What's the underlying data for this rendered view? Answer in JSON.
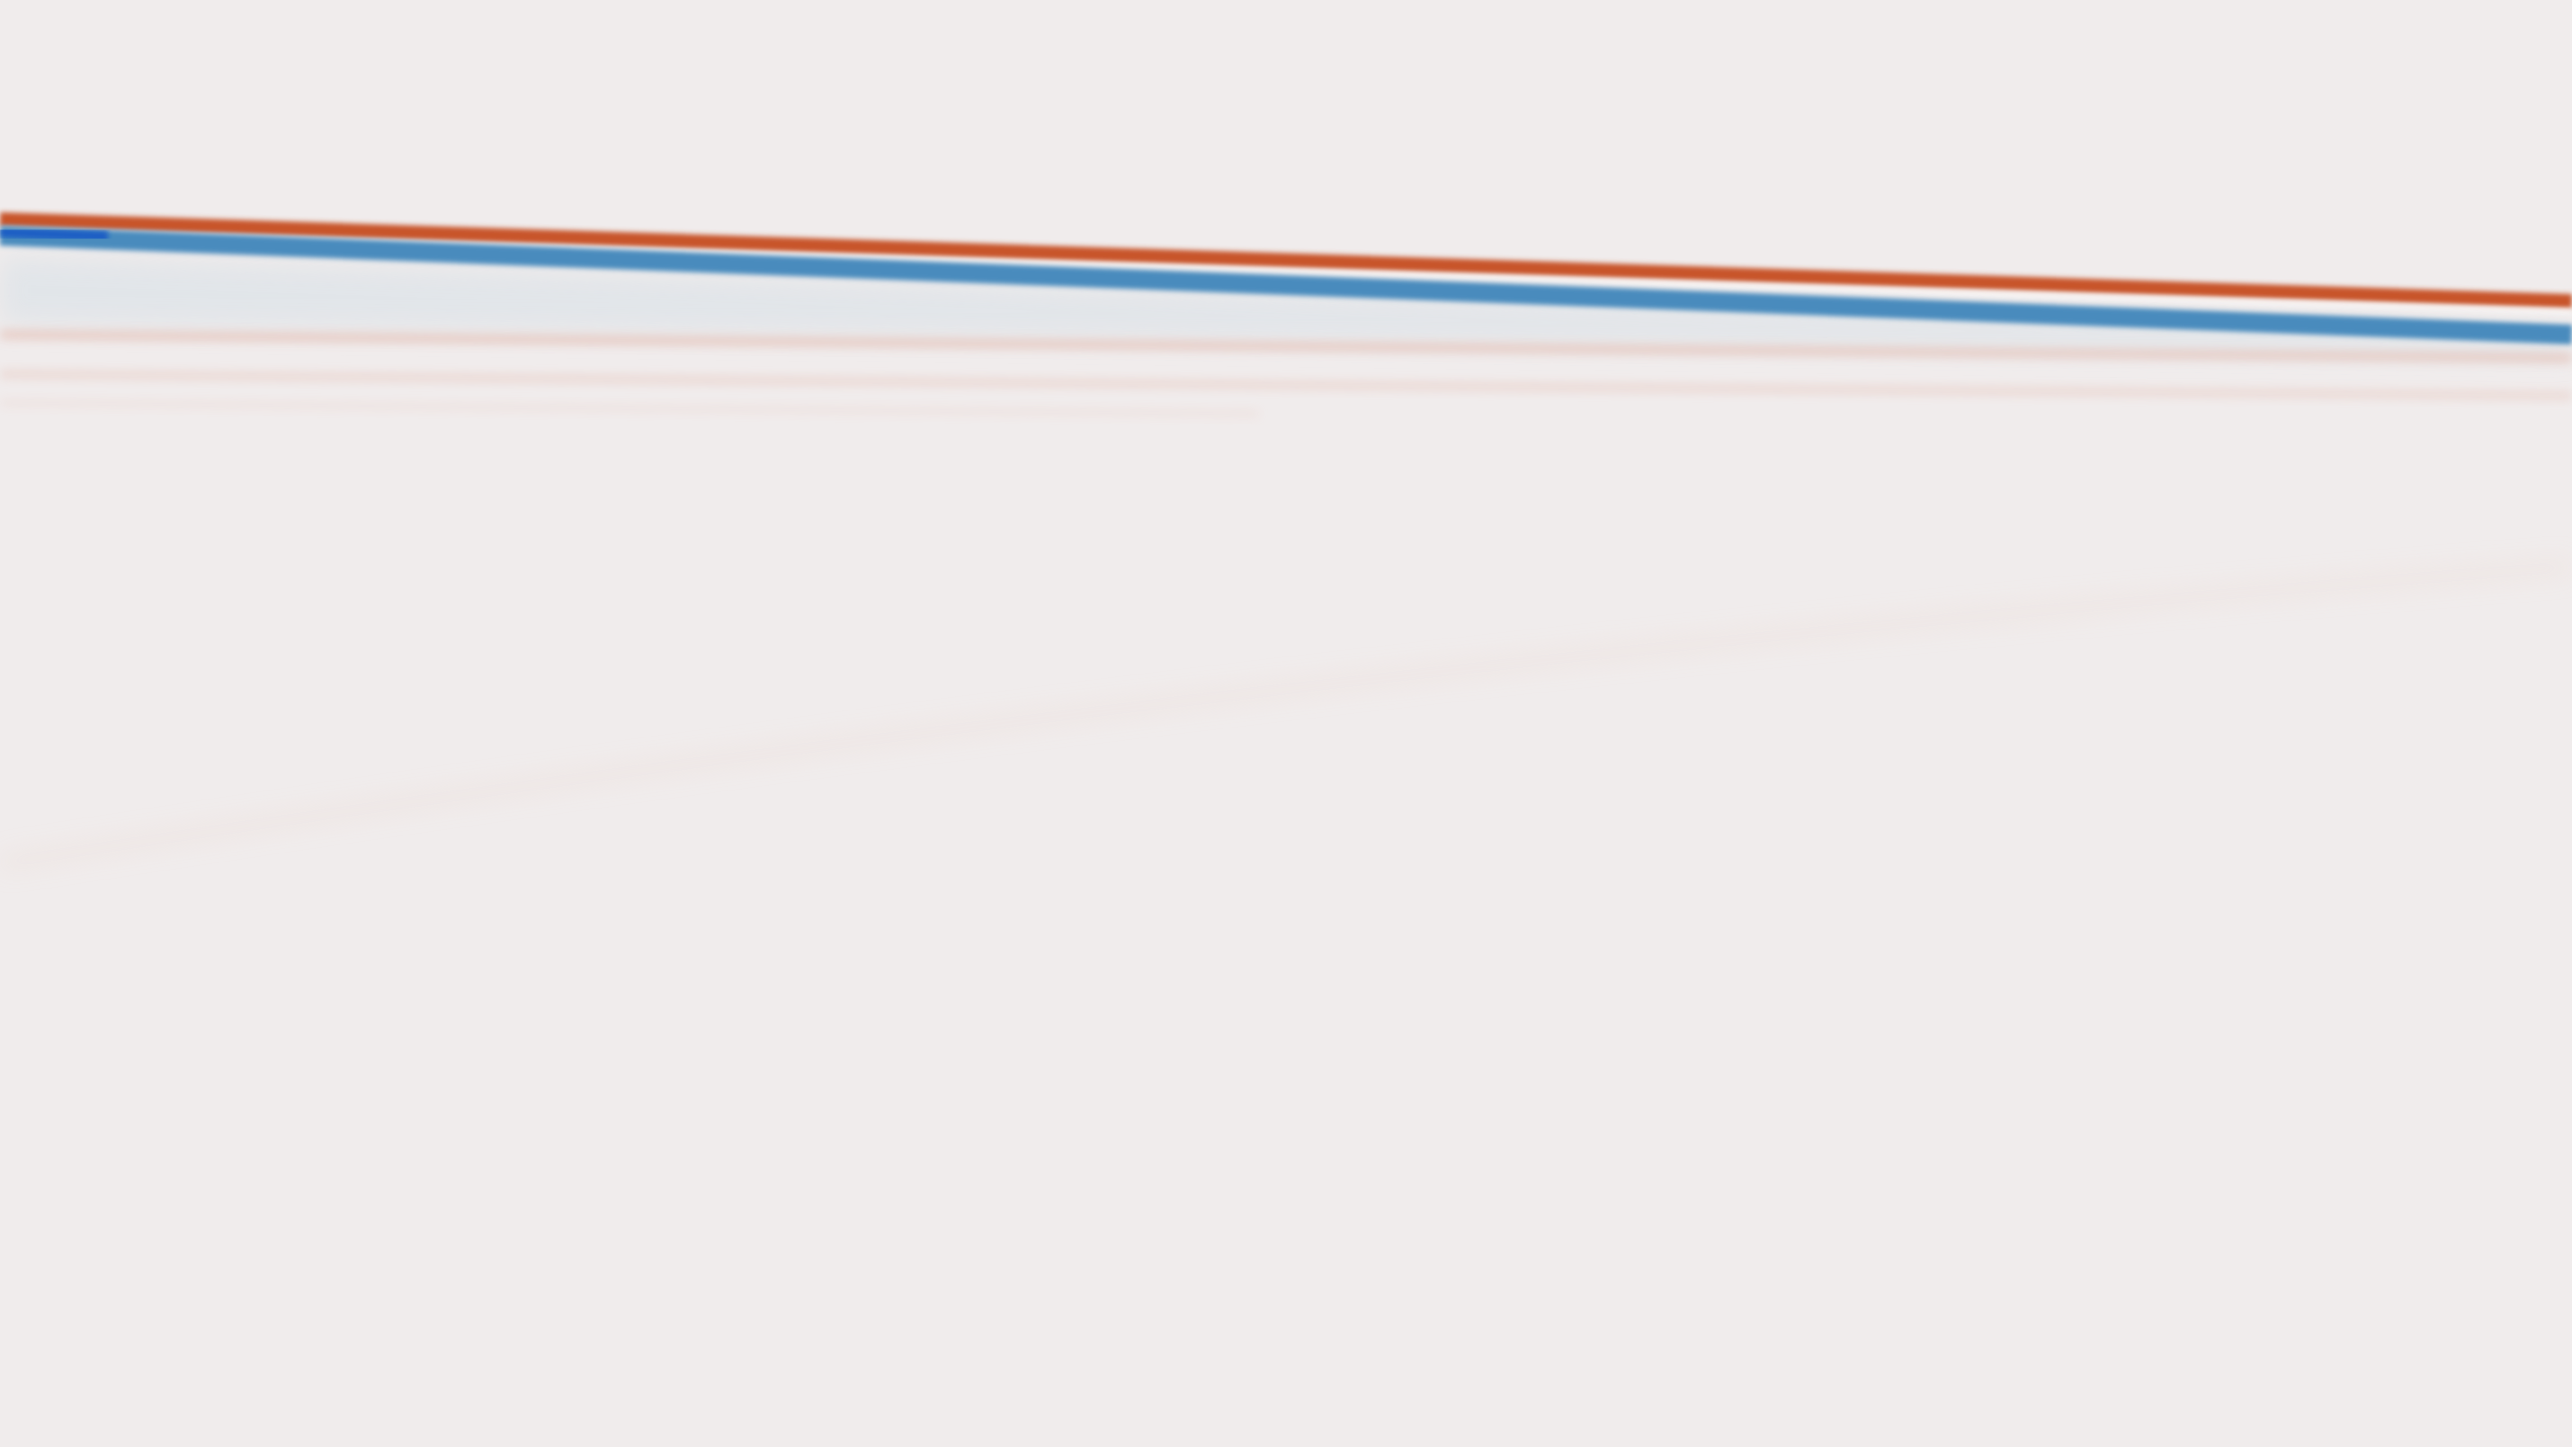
{
  "figure": {
    "background_color": "#f0ecec",
    "colors": {
      "red_band": "#c8542c",
      "blue_band": "#4a8bbd",
      "deep_blue": "#1f5fc4",
      "faint_red": "#e0a898",
      "pale_blue_wash": "#dde3e8"
    }
  }
}
